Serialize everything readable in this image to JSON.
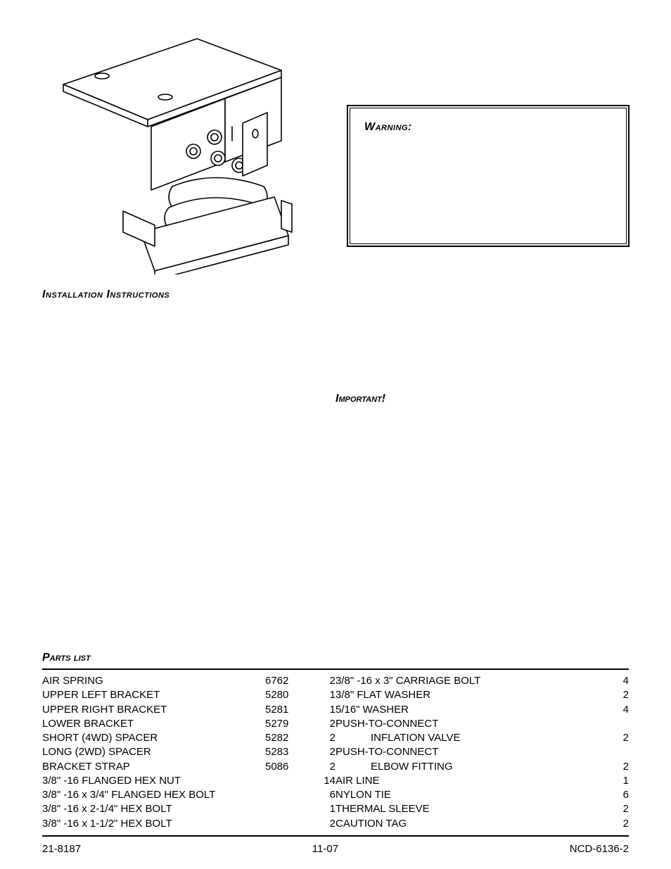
{
  "figure": {
    "name": "air-spring-assembly-figure"
  },
  "warning": {
    "label": "Warning:"
  },
  "install_title": "Installation Instructions",
  "important_label": "Important!",
  "parts_title": "Parts list",
  "parts_left": [
    {
      "desc": "AIR SPRING",
      "num": "6762",
      "qty": "2"
    },
    {
      "desc": "UPPER LEFT BRACKET",
      "num": "5280",
      "qty": "1"
    },
    {
      "desc": "UPPER RIGHT BRACKET",
      "num": "5281",
      "qty": "1"
    },
    {
      "desc": "LOWER BRACKET",
      "num": "5279",
      "qty": "2"
    },
    {
      "desc": "SHORT (4WD) SPACER",
      "num": "5282",
      "qty": "2"
    },
    {
      "desc": "LONG (2WD) SPACER",
      "num": "5283",
      "qty": "2"
    },
    {
      "desc": "BRACKET STRAP",
      "num": "5086",
      "qty": "2"
    },
    {
      "desc": "3/8\" -16 FLANGED HEX NUT",
      "num": "",
      "qty": "14"
    },
    {
      "desc": "3/8\" -16 x 3/4\" FLANGED HEX BOLT",
      "num": "",
      "qty": "6"
    },
    {
      "desc": "3/8\" -16 x 2-1/4\" HEX BOLT",
      "num": "",
      "qty": "1"
    },
    {
      "desc": "3/8\" -16 x 1-1/2\" HEX BOLT",
      "num": "",
      "qty": "2"
    }
  ],
  "parts_right": [
    {
      "desc": "3/8\" -16 x 3\" CARRIAGE BOLT",
      "qty": "4",
      "indent": false
    },
    {
      "desc": "3/8\" FLAT WASHER",
      "qty": "2",
      "indent": false
    },
    {
      "desc": "5/16\" WASHER",
      "qty": "4",
      "indent": false
    },
    {
      "desc": "PUSH-TO-CONNECT",
      "qty": "",
      "indent": false
    },
    {
      "desc": "INFLATION VALVE",
      "qty": "2",
      "indent": true
    },
    {
      "desc": "PUSH-TO-CONNECT",
      "qty": "",
      "indent": false
    },
    {
      "desc": "ELBOW FITTING",
      "qty": "2",
      "indent": true
    },
    {
      "desc": "AIR LINE",
      "qty": "1",
      "indent": false
    },
    {
      "desc": "NYLON TIE",
      "qty": "6",
      "indent": false
    },
    {
      "desc": "THERMAL SLEEVE",
      "qty": "2",
      "indent": false
    },
    {
      "desc": "CAUTION TAG",
      "qty": "2",
      "indent": false
    }
  ],
  "footer": {
    "left": "21-8187",
    "center": "11-07",
    "right": "NCD-6136-2"
  },
  "colors": {
    "text": "#000000",
    "bg": "#ffffff",
    "rule": "#000000"
  }
}
